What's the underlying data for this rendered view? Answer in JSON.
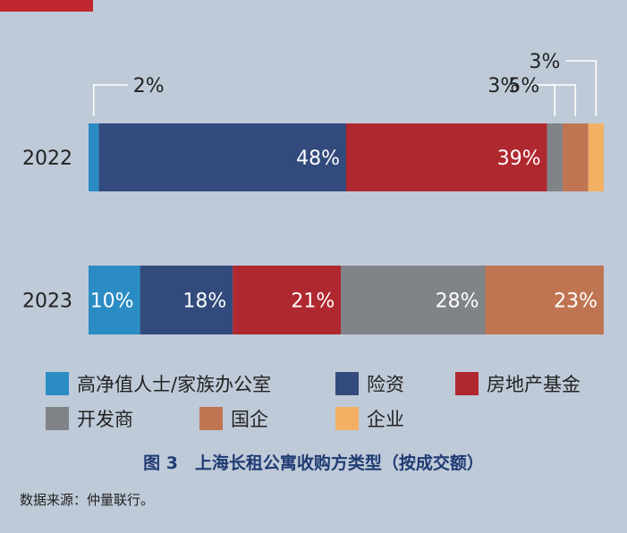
{
  "accent_color": "#c2262e",
  "chart_data": {
    "type": "bar",
    "orientation": "horizontal",
    "stacked": true,
    "normalized": true,
    "categories": [
      "2022",
      "2023"
    ],
    "series": [
      {
        "name": "高净值人士/家族办公室",
        "color": "#2b8cc4",
        "values": [
          2,
          10
        ],
        "labels": [
          "2%",
          "10%"
        ]
      },
      {
        "name": "险资",
        "color": "#324a7c",
        "values": [
          48,
          18
        ],
        "labels": [
          "48%",
          "18%"
        ]
      },
      {
        "name": "房地产基金",
        "color": "#b0282f",
        "values": [
          39,
          21
        ],
        "labels": [
          "39%",
          "21%"
        ]
      },
      {
        "name": "开发商",
        "color": "#808387",
        "values": [
          3,
          28
        ],
        "labels": [
          "3%",
          "28%"
        ]
      },
      {
        "name": "国企",
        "color": "#c07552",
        "values": [
          5,
          23
        ],
        "labels": [
          "5%",
          "23%"
        ]
      },
      {
        "name": "企业",
        "color": "#f3b063",
        "values": [
          3,
          0
        ],
        "labels": [
          "3%",
          ""
        ]
      }
    ],
    "legend_position": "bottom",
    "grid": false
  },
  "caption": "图 3　上海长租公寓收购方类型（按成交额）",
  "source": "数据来源：仲量联行。"
}
